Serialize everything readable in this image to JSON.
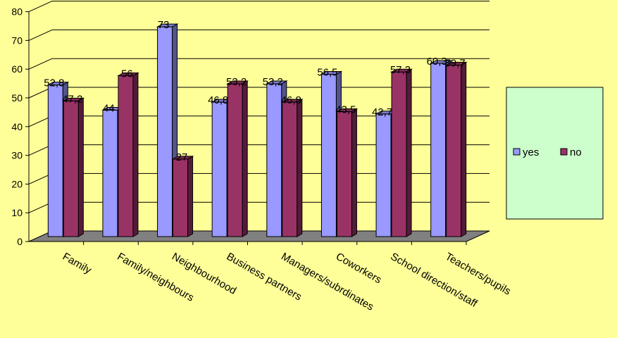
{
  "chart_data": {
    "type": "bar",
    "categories": [
      "Family",
      "Family/neighbours",
      "Neighbourhood",
      "Business partners",
      "Managers/subrdinates",
      "Coworkers",
      "School direction/staff",
      "Teachers/pupils"
    ],
    "series": [
      {
        "name": "yes",
        "values": [
          52.8,
          44,
          73,
          46.8,
          53.2,
          56.5,
          42.7,
          60.3
        ],
        "labels": [
          "52,8",
          "44",
          "73",
          "46,8",
          "53,2",
          "56,5",
          "42,7",
          "60,3"
        ],
        "color": "#9999FF"
      },
      {
        "name": "no",
        "values": [
          47.2,
          56,
          27,
          53.2,
          46.8,
          43.5,
          57.3,
          59.7
        ],
        "labels": [
          "47,2",
          "56",
          "27",
          "53,2",
          "46,8",
          "43,5",
          "57,3",
          "59,7"
        ],
        "color": "#993366"
      }
    ],
    "yticks": [
      "0",
      "10",
      "20",
      "30",
      "40",
      "50",
      "60",
      "70",
      "80"
    ],
    "ylim": [
      0,
      80
    ],
    "grid": true,
    "legend_position": "right",
    "legend_background": "#CCFFCC",
    "background": "#FFFF99",
    "floor_color": "#808080"
  }
}
